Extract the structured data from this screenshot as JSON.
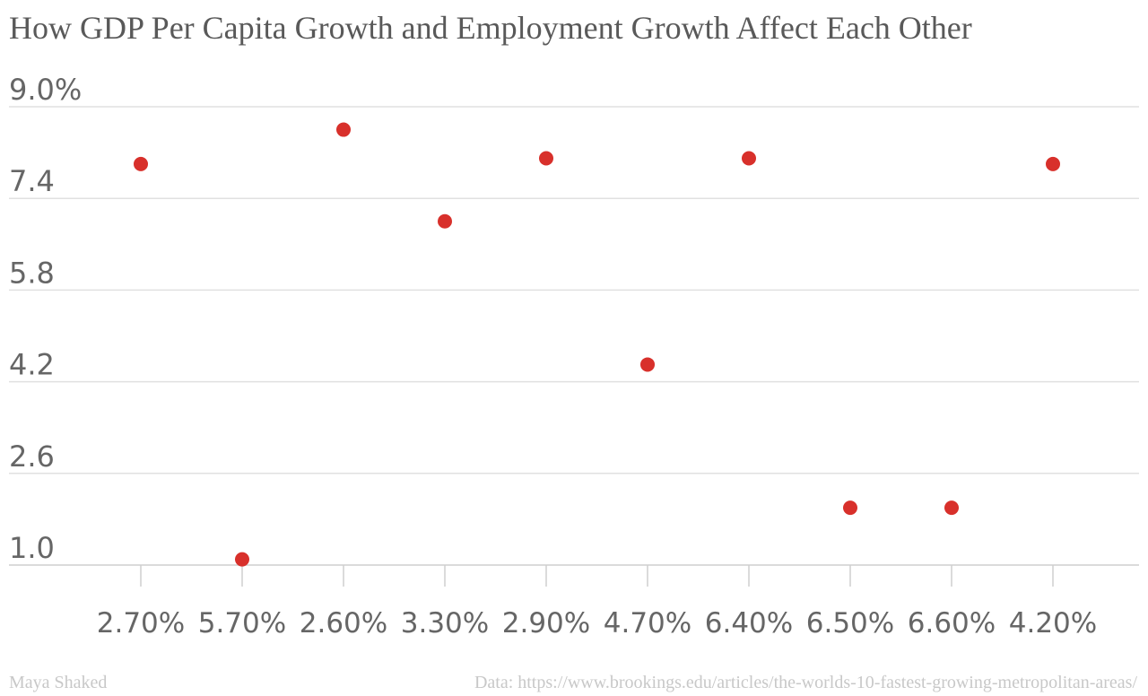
{
  "chart_data": {
    "type": "scatter",
    "title": "How GDP Per Capita Growth and Employment Growth Affect Each Other",
    "xlabel": "",
    "ylabel": "",
    "categories": [
      "2.70%",
      "5.70%",
      "2.60%",
      "3.30%",
      "2.90%",
      "4.70%",
      "6.40%",
      "6.50%",
      "6.60%",
      "4.20%"
    ],
    "values": [
      8.0,
      1.1,
      8.6,
      7.0,
      8.1,
      4.5,
      8.1,
      2.0,
      2.0,
      8.0
    ],
    "y_ticks": [
      "1.0",
      "2.6",
      "4.2",
      "5.8",
      "7.4",
      "9.0%"
    ],
    "ylim": [
      1.0,
      9.0
    ],
    "grid": true,
    "legend": "none",
    "point_color": "#d8302b"
  },
  "footer": {
    "author": "Maya Shaked",
    "source": "Data: https://www.brookings.edu/articles/the-worlds-10-fastest-growing-metropolitan-areas/"
  }
}
